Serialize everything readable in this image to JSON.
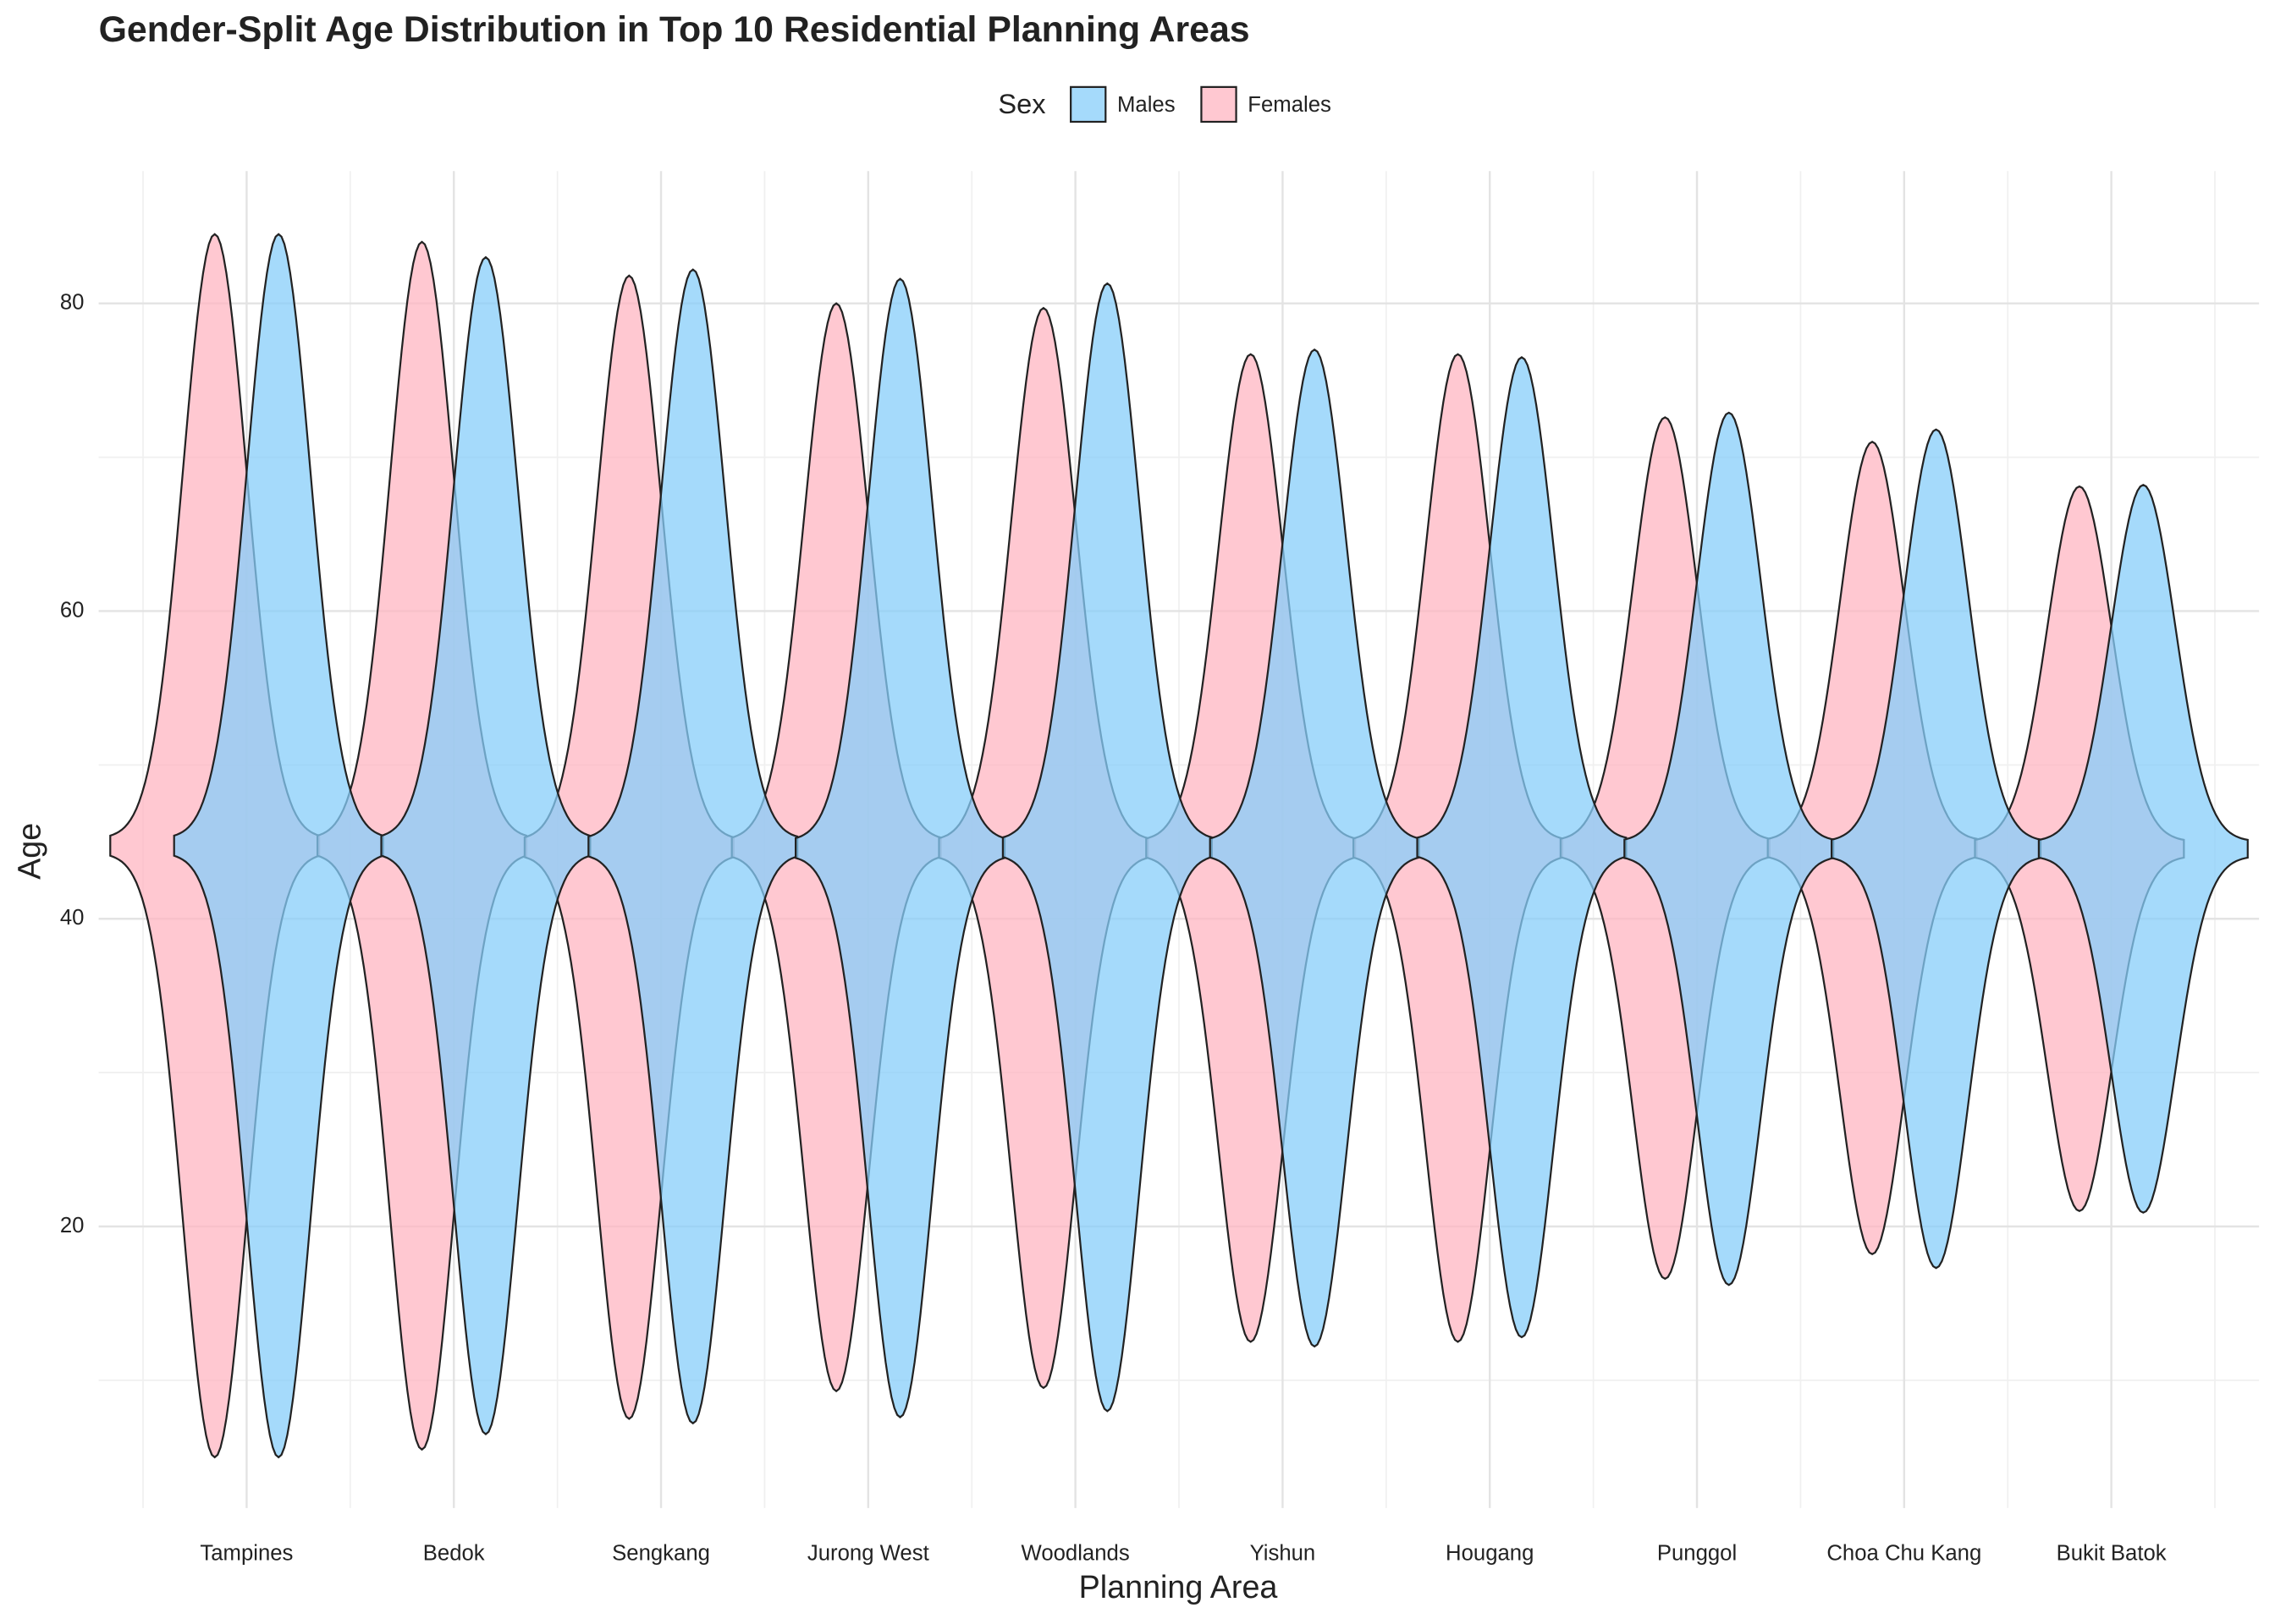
{
  "chart_data": {
    "type": "violin",
    "title": "Gender-Split Age Distribution in Top 10 Residential Planning Areas",
    "x_label": "Planning Area",
    "y_label": "Age",
    "legend_title": "Sex",
    "categories": [
      "Tampines",
      "Bedok",
      "Sengkang",
      "Jurong West",
      "Woodlands",
      "Yishun",
      "Hougang",
      "Punggol",
      "Choa Chu Kang",
      "Bukit Batok"
    ],
    "series": [
      {
        "name": "Males",
        "color": "#87CEFA",
        "max": [
          84.5,
          83,
          82.2,
          81.6,
          81.3,
          77,
          76.5,
          72.9,
          71.8,
          68.2
        ],
        "min": [
          5,
          6.5,
          7.2,
          7.6,
          8,
          12.2,
          12.8,
          16.2,
          17.3,
          20.9
        ]
      },
      {
        "name": "Females",
        "color": "#FFB6C1",
        "max": [
          84.5,
          84,
          81.8,
          80,
          79.7,
          76.7,
          76.7,
          72.6,
          71,
          68.1
        ],
        "min": [
          5,
          5.5,
          7.5,
          9.3,
          9.5,
          12.5,
          12.5,
          16.6,
          18.2,
          21
        ]
      }
    ],
    "ylim": [
      1.7,
      88.6
    ],
    "yticks": [
      20,
      40,
      60,
      80
    ],
    "grid": true,
    "legend": "top"
  }
}
